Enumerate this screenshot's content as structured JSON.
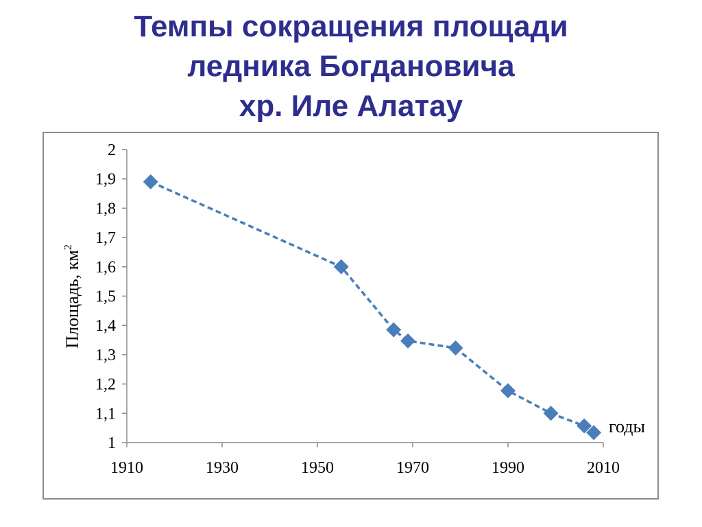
{
  "slide": {
    "title_lines": [
      "Темпы сокращения площади",
      "ледника Богдановича",
      "хр. Иле Алатау"
    ]
  },
  "colors": {
    "title": "#2e2e8f",
    "series": "#4a7ebb",
    "axis": "#8c8c8c"
  },
  "chart_data": {
    "type": "scatter",
    "title": "",
    "ylabel": "Площадь, км",
    "ylabel_superscript": "2",
    "xlabel": "годы",
    "xlim": [
      1910,
      2010
    ],
    "ylim": [
      1,
      2
    ],
    "x_ticks": [
      "1910",
      "1930",
      "1950",
      "1970",
      "1990",
      "2010"
    ],
    "y_ticks": [
      "1",
      "1,1",
      "1,2",
      "1,3",
      "1,4",
      "1,5",
      "1,6",
      "1,7",
      "1,8",
      "1,9",
      "2"
    ],
    "grid": false,
    "legend": "none",
    "line_style": "dashed",
    "marker": "diamond",
    "series": [
      {
        "x": [
          1915,
          1955,
          1966,
          1969,
          1979,
          1990,
          1999,
          2006,
          2008
        ],
        "y": [
          1.89,
          1.6,
          1.385,
          1.347,
          1.323,
          1.177,
          1.1,
          1.057,
          1.034
        ]
      }
    ]
  }
}
